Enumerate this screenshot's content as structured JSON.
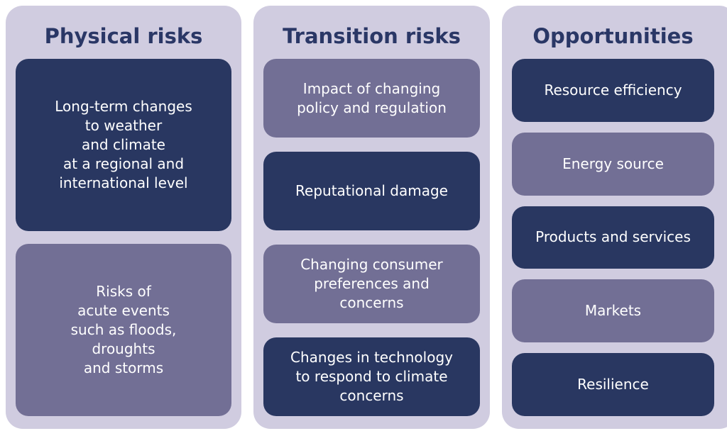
{
  "columns": [
    {
      "title": "Physical risks",
      "items": [
        {
          "lines": [
            "Long-term changes",
            "to weather",
            "and climate",
            "at a regional and",
            "international level"
          ],
          "color": "#293761"
        },
        {
          "lines": [
            "Risks of",
            "acute events",
            "such as floods,",
            "droughts",
            "and storms"
          ],
          "color": "#726f95"
        }
      ]
    },
    {
      "title": "Transition risks",
      "items": [
        {
          "lines": [
            "Impact of changing",
            "policy and regulation"
          ],
          "color": "#726f95"
        },
        {
          "lines": [
            "Reputational damage"
          ],
          "color": "#293761"
        },
        {
          "lines": [
            "Changing consumer",
            "preferences and",
            "concerns"
          ],
          "color": "#726f95"
        },
        {
          "lines": [
            "Changes in technology",
            "to respond to climate",
            "concerns"
          ],
          "color": "#293761"
        }
      ]
    },
    {
      "title": "Opportunities",
      "items": [
        {
          "lines": [
            "Resource efficiency"
          ],
          "color": "#293761"
        },
        {
          "lines": [
            "Energy source"
          ],
          "color": "#726f95"
        },
        {
          "lines": [
            "Products and services"
          ],
          "color": "#293761"
        },
        {
          "lines": [
            "Markets"
          ],
          "color": "#726f95"
        },
        {
          "lines": [
            "Resilience"
          ],
          "color": "#293761"
        }
      ]
    }
  ]
}
